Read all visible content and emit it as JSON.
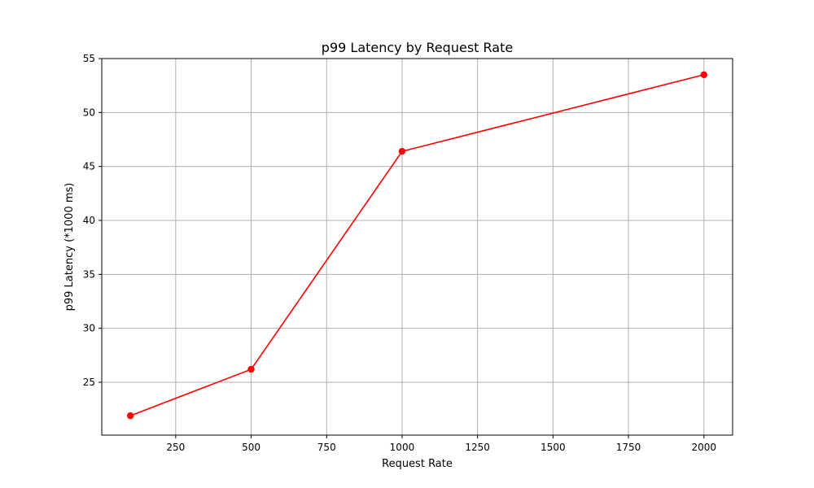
{
  "chart_data": {
    "type": "line",
    "title": "p99 Latency by Request Rate",
    "xlabel": "Request Rate",
    "ylabel": "p99 Latency (*1000 ms)",
    "xlim": [
      5,
      2095
    ],
    "ylim": [
      20.1,
      55
    ],
    "xticks": [
      250,
      500,
      750,
      1000,
      1250,
      1500,
      1750,
      2000
    ],
    "yticks": [
      25,
      30,
      35,
      40,
      45,
      50,
      55
    ],
    "grid": true,
    "series": [
      {
        "color": "#ff0000",
        "marker": "circle",
        "x": [
          100,
          500,
          1000,
          2000
        ],
        "y": [
          21.9,
          26.2,
          46.4,
          53.5
        ]
      }
    ]
  }
}
